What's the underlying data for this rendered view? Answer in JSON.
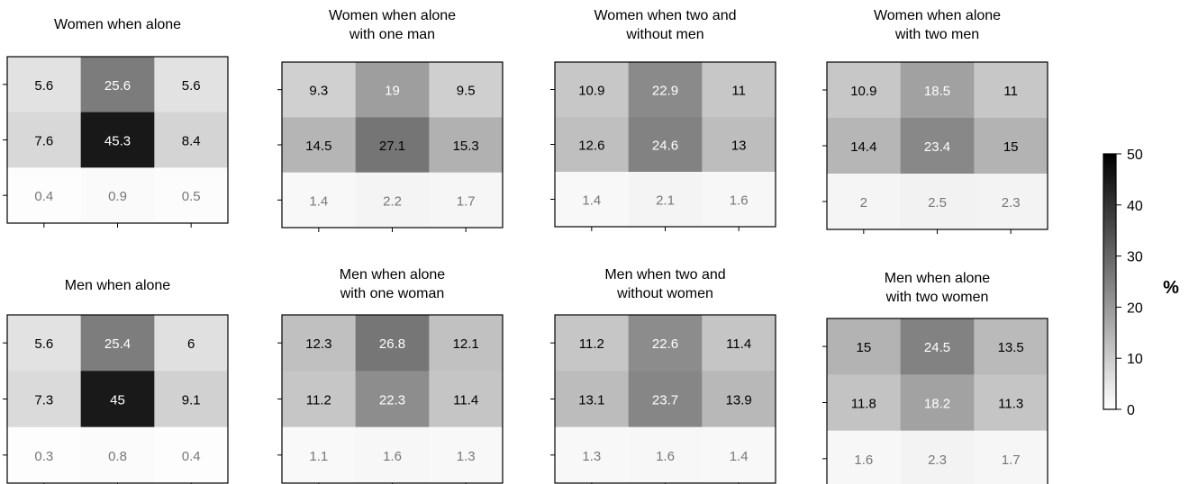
{
  "chart_data": {
    "type": "heatmap",
    "value_range": [
      0,
      50
    ],
    "colormap": {
      "low": "#ffffff",
      "high": "#000000"
    },
    "colorbar": {
      "label": "%",
      "ticks": [
        "0",
        "10",
        "20",
        "30",
        "40",
        "50"
      ]
    },
    "panels": [
      {
        "title": [
          "Women when alone"
        ],
        "values": [
          [
            5.6,
            25.6,
            5.6
          ],
          [
            7.6,
            45.3,
            8.4
          ],
          [
            0.4,
            0.9,
            0.5
          ]
        ]
      },
      {
        "title": [
          "Women when alone",
          "with one man"
        ],
        "values": [
          [
            9.3,
            19,
            9.5
          ],
          [
            14.5,
            27.1,
            15.3
          ],
          [
            1.4,
            2.2,
            1.7
          ]
        ]
      },
      {
        "title": [
          "Women when two and",
          "without men"
        ],
        "values": [
          [
            10.9,
            22.9,
            11
          ],
          [
            12.6,
            24.6,
            13
          ],
          [
            1.4,
            2.1,
            1.6
          ]
        ]
      },
      {
        "title": [
          "Women when alone",
          "with two men"
        ],
        "values": [
          [
            10.9,
            18.5,
            11
          ],
          [
            14.4,
            23.4,
            15
          ],
          [
            2,
            2.5,
            2.3
          ]
        ]
      },
      {
        "title": [
          "Men when alone"
        ],
        "values": [
          [
            5.6,
            25.4,
            6
          ],
          [
            7.3,
            45,
            9.1
          ],
          [
            0.3,
            0.8,
            0.4
          ]
        ]
      },
      {
        "title": [
          "Men when alone",
          "with one woman"
        ],
        "values": [
          [
            12.3,
            26.8,
            12.1
          ],
          [
            11.2,
            22.3,
            11.4
          ],
          [
            1.1,
            1.6,
            1.3
          ]
        ]
      },
      {
        "title": [
          "Men when two and",
          "without women"
        ],
        "values": [
          [
            11.2,
            22.6,
            11.4
          ],
          [
            13.1,
            23.7,
            13.9
          ],
          [
            1.3,
            1.6,
            1.4
          ]
        ]
      },
      {
        "title": [
          "Men when alone",
          "with two women"
        ],
        "values": [
          [
            15,
            24.5,
            13.5
          ],
          [
            11.8,
            18.2,
            11.3
          ],
          [
            1.6,
            2.3,
            1.7
          ]
        ]
      }
    ]
  }
}
